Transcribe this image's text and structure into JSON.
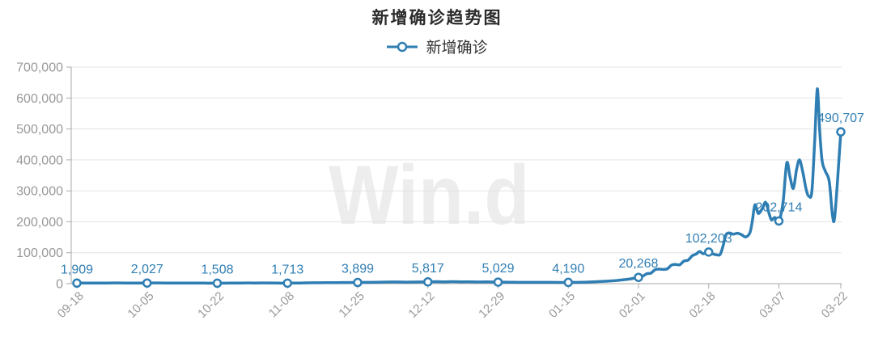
{
  "title": "新增确诊趋势图",
  "legend": {
    "label": "新增确诊"
  },
  "watermark": "Win.d",
  "colors": {
    "series": "#2f7eb3",
    "data_label": "#2f7eb3",
    "marker_fill": "#ffffff",
    "axis_label": "#999999",
    "gridline": "#e3e3e3",
    "axis_line": "#aaaaaa",
    "title_text": "#2b2b2b",
    "watermark": "#ededed"
  },
  "chart_data": {
    "type": "line",
    "title": "新增确诊趋势图",
    "series_name": "新增确诊",
    "xlabel": "",
    "ylabel": "",
    "ylim": [
      0,
      700000
    ],
    "grid": true,
    "legend_position": "top",
    "x_max_index": 185,
    "y_ticks": [
      {
        "value": 0,
        "label": "0"
      },
      {
        "value": 100000,
        "label": "100,000"
      },
      {
        "value": 200000,
        "label": "200,000"
      },
      {
        "value": 300000,
        "label": "300,000"
      },
      {
        "value": 400000,
        "label": "400,000"
      },
      {
        "value": 500000,
        "label": "500,000"
      },
      {
        "value": 600000,
        "label": "600,000"
      },
      {
        "value": 700000,
        "label": "700,000"
      }
    ],
    "x_ticks": [
      {
        "index": 0,
        "label": "09-18"
      },
      {
        "index": 17,
        "label": "10-05"
      },
      {
        "index": 34,
        "label": "10-22"
      },
      {
        "index": 51,
        "label": "11-08"
      },
      {
        "index": 68,
        "label": "11-25"
      },
      {
        "index": 85,
        "label": "12-12"
      },
      {
        "index": 102,
        "label": "12-29"
      },
      {
        "index": 119,
        "label": "01-15"
      },
      {
        "index": 136,
        "label": "02-01"
      },
      {
        "index": 153,
        "label": "02-18"
      },
      {
        "index": 170,
        "label": "03-07"
      },
      {
        "index": 185,
        "label": "03-22"
      }
    ],
    "labeled_points": [
      {
        "index": 0,
        "date": "09-18",
        "value": 1909,
        "label": "1,909"
      },
      {
        "index": 17,
        "date": "10-05",
        "value": 2027,
        "label": "2,027"
      },
      {
        "index": 34,
        "date": "10-22",
        "value": 1508,
        "label": "1,508"
      },
      {
        "index": 51,
        "date": "11-08",
        "value": 1713,
        "label": "1,713"
      },
      {
        "index": 68,
        "date": "11-25",
        "value": 3899,
        "label": "3,899"
      },
      {
        "index": 85,
        "date": "12-12",
        "value": 5817,
        "label": "5,817"
      },
      {
        "index": 102,
        "date": "12-29",
        "value": 5029,
        "label": "5,029"
      },
      {
        "index": 119,
        "date": "01-15",
        "value": 4190,
        "label": "4,190"
      },
      {
        "index": 136,
        "date": "02-01",
        "value": 20268,
        "label": "20,268"
      },
      {
        "index": 153,
        "date": "02-18",
        "value": 102203,
        "label": "102,203"
      },
      {
        "index": 170,
        "date": "03-07",
        "value": 202714,
        "label": "202,714"
      },
      {
        "index": 185,
        "date": "03-22",
        "value": 490707,
        "label": "490,707"
      }
    ],
    "line_points": [
      [
        0,
        1909
      ],
      [
        3,
        2100
      ],
      [
        6,
        1800
      ],
      [
        9,
        2300
      ],
      [
        12,
        2100
      ],
      [
        14,
        1900
      ],
      [
        17,
        2027
      ],
      [
        20,
        2300
      ],
      [
        23,
        1800
      ],
      [
        26,
        2100
      ],
      [
        29,
        1900
      ],
      [
        31,
        1700
      ],
      [
        34,
        1508
      ],
      [
        37,
        1800
      ],
      [
        40,
        2200
      ],
      [
        43,
        2000
      ],
      [
        46,
        2300
      ],
      [
        49,
        1900
      ],
      [
        51,
        1713
      ],
      [
        54,
        2200
      ],
      [
        57,
        2800
      ],
      [
        60,
        3100
      ],
      [
        63,
        3400
      ],
      [
        66,
        3700
      ],
      [
        68,
        3899
      ],
      [
        71,
        4300
      ],
      [
        74,
        5000
      ],
      [
        77,
        5400
      ],
      [
        80,
        4900
      ],
      [
        82,
        5300
      ],
      [
        85,
        5817
      ],
      [
        87,
        6400
      ],
      [
        89,
        5900
      ],
      [
        91,
        6600
      ],
      [
        93,
        5800
      ],
      [
        95,
        6100
      ],
      [
        97,
        5400
      ],
      [
        99,
        5700
      ],
      [
        102,
        5029
      ],
      [
        105,
        4700
      ],
      [
        108,
        4300
      ],
      [
        111,
        4100
      ],
      [
        114,
        4300
      ],
      [
        117,
        4000
      ],
      [
        119,
        4190
      ],
      [
        121,
        4300
      ],
      [
        124,
        5200
      ],
      [
        127,
        7000
      ],
      [
        130,
        9500
      ],
      [
        132,
        12000
      ],
      [
        134,
        15500
      ],
      [
        136,
        20268
      ],
      [
        137,
        24000
      ],
      [
        138,
        32000
      ],
      [
        139,
        34000
      ],
      [
        140,
        45000
      ],
      [
        141,
        47000
      ],
      [
        142,
        46000
      ],
      [
        143,
        48000
      ],
      [
        144,
        60000
      ],
      [
        145,
        62000
      ],
      [
        146,
        61000
      ],
      [
        147,
        73000
      ],
      [
        148,
        76000
      ],
      [
        149,
        90000
      ],
      [
        150,
        96000
      ],
      [
        150.8,
        104000
      ],
      [
        151.6,
        97000
      ],
      [
        152.3,
        99500
      ],
      [
        153,
        102203
      ],
      [
        154,
        96000
      ],
      [
        155,
        93000
      ],
      [
        155.8,
        95000
      ],
      [
        156.5,
        123000
      ],
      [
        157.2,
        158000
      ],
      [
        158,
        164000
      ],
      [
        159,
        160000
      ],
      [
        160,
        163000
      ],
      [
        161,
        158000
      ],
      [
        162,
        151000
      ],
      [
        163,
        165000
      ],
      [
        163.6,
        205000
      ],
      [
        164.2,
        255000
      ],
      [
        165,
        227000
      ],
      [
        166,
        243000
      ],
      [
        166.8,
        263000
      ],
      [
        167.6,
        228000
      ],
      [
        168.2,
        206000
      ],
      [
        169,
        214000
      ],
      [
        170,
        202714
      ],
      [
        171,
        262000
      ],
      [
        171.9,
        390000
      ],
      [
        172.7,
        345000
      ],
      [
        173.5,
        308000
      ],
      [
        174.3,
        370000
      ],
      [
        175,
        400000
      ],
      [
        175.8,
        360000
      ],
      [
        176.6,
        305000
      ],
      [
        177.3,
        282000
      ],
      [
        178,
        300000
      ],
      [
        178.7,
        470000
      ],
      [
        179.3,
        630000
      ],
      [
        179.9,
        490000
      ],
      [
        180.5,
        395000
      ],
      [
        181.3,
        362000
      ],
      [
        182.2,
        330000
      ],
      [
        183,
        219000
      ],
      [
        183.6,
        228000
      ],
      [
        185,
        490707
      ]
    ]
  }
}
